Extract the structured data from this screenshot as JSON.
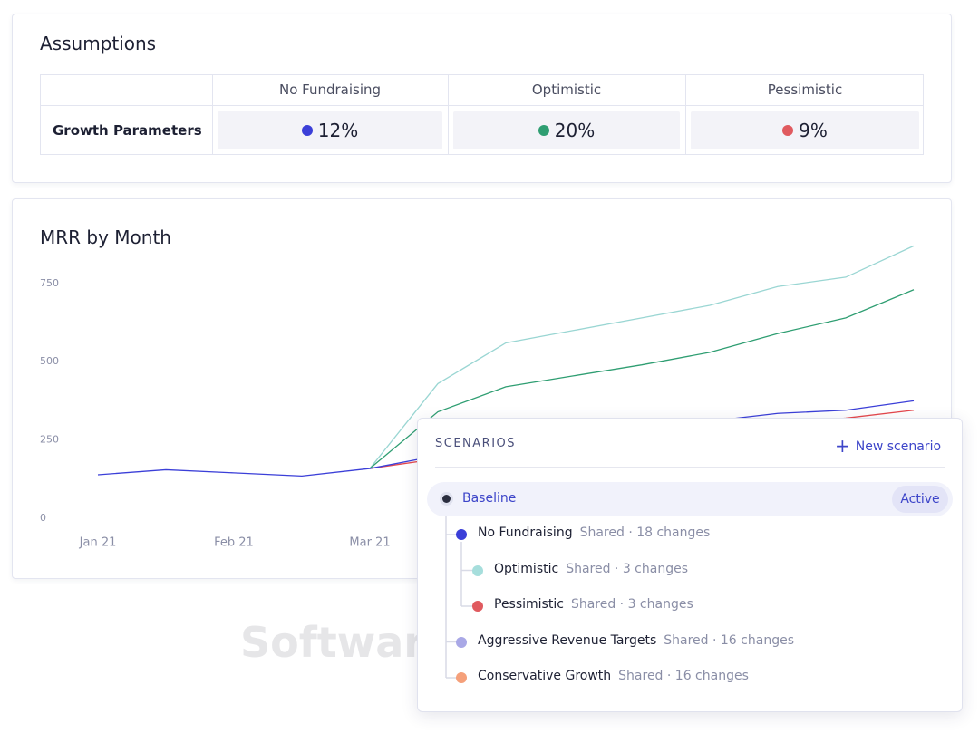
{
  "assumptions": {
    "title": "Assumptions",
    "columns": [
      "No Fundraising",
      "Optimistic",
      "Pessimistic"
    ],
    "rows": [
      {
        "label": "Growth Parameters",
        "cells": [
          {
            "text": "12%",
            "color": "#3b3fd8"
          },
          {
            "text": "20%",
            "color": "#2f9e72"
          },
          {
            "text": "9%",
            "color": "#e05a5f"
          }
        ]
      }
    ]
  },
  "chart_data": {
    "type": "line",
    "title": "MRR by Month",
    "categories": [
      "Jan 21",
      null,
      "Feb 21",
      null,
      "Mar 21",
      null,
      null,
      null,
      null,
      null,
      null,
      null,
      null
    ],
    "ylim": [
      0,
      900
    ],
    "yticks": [
      0,
      250,
      500,
      750
    ],
    "series": [
      {
        "color": "#9ad6d3",
        "values": [
          null,
          null,
          null,
          null,
          159,
          430,
          560,
          600,
          640,
          680,
          740,
          770,
          870
        ]
      },
      {
        "color": "#2f9e72",
        "values": [
          null,
          null,
          null,
          null,
          159,
          340,
          420,
          455,
          490,
          530,
          590,
          640,
          730
        ]
      },
      {
        "color": "#e5484d",
        "values": [
          null,
          null,
          null,
          null,
          159,
          190,
          215,
          240,
          260,
          280,
          300,
          320,
          345
        ]
      },
      {
        "color": "#3b3fd8",
        "values": [
          139,
          155,
          145,
          135,
          159,
          200,
          230,
          260,
          280,
          310,
          335,
          345,
          375
        ]
      }
    ]
  },
  "scenarios": {
    "title": "SCENARIOS",
    "action": "New scenario",
    "root": {
      "name": "Baseline",
      "badge": "Active",
      "color": "#2a2d3e",
      "children": [
        {
          "name": "No Fundraising",
          "meta": "Shared · 18 changes",
          "color": "#3b3fd8",
          "children": [
            {
              "name": "Optimistic",
              "meta": "Shared · 3 changes",
              "color": "#a6dedc"
            },
            {
              "name": "Pessimistic",
              "meta": "Shared · 3 changes",
              "color": "#e05a5f"
            }
          ]
        },
        {
          "name": "Aggressive Revenue Targets",
          "meta": "Shared · 16 changes",
          "color": "#a9a8e6"
        },
        {
          "name": "Conservative Growth",
          "meta": "Shared · 16 changes",
          "color": "#f5a07a"
        }
      ]
    }
  },
  "watermark": "SoftwareSuggest.com"
}
